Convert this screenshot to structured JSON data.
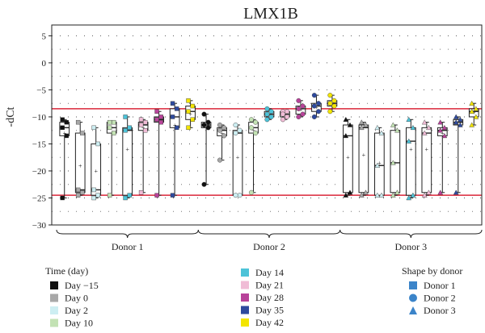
{
  "chart_data": {
    "type": "box",
    "title": "LMX1B",
    "ylabel": "-dCt",
    "xlabel": "",
    "ylim": [
      -30,
      7
    ],
    "yticks": [
      5,
      0,
      -5,
      -10,
      -15,
      -20,
      -25,
      -30
    ],
    "grid": "dotted",
    "reference_lines": [
      -8.5,
      -24.5
    ],
    "reference_line_color": "#d9263a",
    "groups": [
      {
        "label": "Donor 1",
        "days": [
          "Day −15",
          "Day 0",
          "Day 2",
          "Day 10",
          "Day 14",
          "Day 21",
          "Day 28",
          "Day 35",
          "Day 42"
        ]
      },
      {
        "label": "Donor 2",
        "days": [
          "Day −15",
          "Day 0",
          "Day 2",
          "Day 10",
          "Day 14",
          "Day 21",
          "Day 28",
          "Day 35",
          "Day 42"
        ]
      },
      {
        "label": "Donor 3",
        "days": [
          "Day −15",
          "Day 0",
          "Day 2",
          "Day 10",
          "Day 14",
          "Day 21",
          "Day 28",
          "Day 35",
          "Day 42"
        ]
      }
    ],
    "boxes": [
      {
        "group": 0,
        "day": 0,
        "q1": -13.5,
        "median": -12,
        "q3": -11,
        "min": -25,
        "max": -10.5,
        "mean": -13
      },
      {
        "group": 0,
        "day": 1,
        "q1": -24,
        "median": -23.5,
        "q3": -13,
        "min": -24.5,
        "max": -11,
        "mean": -19
      },
      {
        "group": 0,
        "day": 2,
        "q1": -24.5,
        "median": -23.5,
        "q3": -15,
        "min": -25,
        "max": -12,
        "mean": -20
      },
      {
        "group": 0,
        "day": 3,
        "q1": -13,
        "median": -12,
        "q3": -11,
        "min": -24.5,
        "max": -11,
        "mean": -13
      },
      {
        "group": 0,
        "day": 4,
        "q1": -24.5,
        "median": -12.5,
        "q3": -12,
        "min": -25,
        "max": -10,
        "mean": -16
      },
      {
        "group": 0,
        "day": 5,
        "q1": -12.5,
        "median": -11.5,
        "q3": -11,
        "min": -24,
        "max": -10.5,
        "mean": -12
      },
      {
        "group": 0,
        "day": 6,
        "q1": -11,
        "median": -10.5,
        "q3": -10,
        "min": -24.5,
        "max": -9,
        "mean": -11
      },
      {
        "group": 0,
        "day": 7,
        "q1": -12,
        "median": -10,
        "q3": -8.5,
        "min": -24.5,
        "max": -7.5,
        "mean": -11.5
      },
      {
        "group": 0,
        "day": 8,
        "q1": -10.5,
        "median": -9,
        "q3": -8,
        "min": -12,
        "max": -7,
        "mean": -9.5
      },
      {
        "group": 1,
        "day": 0,
        "q1": -12,
        "median": -11.5,
        "q3": -11,
        "min": -22.5,
        "max": -9.5,
        "mean": -12
      },
      {
        "group": 1,
        "day": 1,
        "q1": -13.5,
        "median": -12.5,
        "q3": -12,
        "min": -18,
        "max": -11.5,
        "mean": -13
      },
      {
        "group": 1,
        "day": 2,
        "q1": -24.5,
        "median": -13,
        "q3": -12.5,
        "min": -24.5,
        "max": -11.5,
        "mean": -17.5
      },
      {
        "group": 1,
        "day": 3,
        "q1": -13,
        "median": -12,
        "q3": -11,
        "min": -24,
        "max": -10.5,
        "mean": -12.5
      },
      {
        "group": 1,
        "day": 4,
        "q1": -10,
        "median": -9.5,
        "q3": -9,
        "min": -10.5,
        "max": -8.5,
        "mean": -9.7
      },
      {
        "group": 1,
        "day": 5,
        "q1": -10,
        "median": -9.5,
        "q3": -9,
        "min": -10.5,
        "max": -9,
        "mean": -9.6
      },
      {
        "group": 1,
        "day": 6,
        "q1": -9.5,
        "median": -8.5,
        "q3": -8,
        "min": -10,
        "max": -7,
        "mean": -8.7
      },
      {
        "group": 1,
        "day": 7,
        "q1": -9,
        "median": -8,
        "q3": -7.5,
        "min": -10,
        "max": -6,
        "mean": -8.2
      },
      {
        "group": 1,
        "day": 8,
        "q1": -8,
        "median": -7.5,
        "q3": -7,
        "min": -9,
        "max": -6,
        "mean": -7.6
      },
      {
        "group": 2,
        "day": 0,
        "q1": -24,
        "median": -13.5,
        "q3": -11.5,
        "min": -24.5,
        "max": -10.5,
        "mean": -17.5
      },
      {
        "group": 2,
        "day": 1,
        "q1": -24,
        "median": -12,
        "q3": -11.5,
        "min": -24.5,
        "max": -11,
        "mean": -17
      },
      {
        "group": 2,
        "day": 2,
        "q1": -24.5,
        "median": -19,
        "q3": -13,
        "min": -24.5,
        "max": -12,
        "mean": -18.5
      },
      {
        "group": 2,
        "day": 3,
        "q1": -24,
        "median": -18.5,
        "q3": -12.5,
        "min": -24.5,
        "max": -11.5,
        "mean": -18.5
      },
      {
        "group": 2,
        "day": 4,
        "q1": -24.5,
        "median": -14.5,
        "q3": -12,
        "min": -25,
        "max": -10.5,
        "mean": -16
      },
      {
        "group": 2,
        "day": 5,
        "q1": -24,
        "median": -13,
        "q3": -12,
        "min": -24.5,
        "max": -11,
        "mean": -16
      },
      {
        "group": 2,
        "day": 6,
        "q1": -13.5,
        "median": -12.5,
        "q3": -12,
        "min": -24,
        "max": -11,
        "mean": -13
      },
      {
        "group": 2,
        "day": 7,
        "q1": -11.5,
        "median": -11,
        "q3": -10.5,
        "min": -24,
        "max": -10,
        "mean": -11.5
      },
      {
        "group": 2,
        "day": 8,
        "q1": -10,
        "median": -9,
        "q3": -8.5,
        "min": -11.5,
        "max": -7.5,
        "mean": -9.2
      }
    ],
    "legend_title": "Time (day)",
    "legend": [
      {
        "name": "Day −15",
        "color": "#111111"
      },
      {
        "name": "Day 0",
        "color": "#a8a8a8"
      },
      {
        "name": "Day 2",
        "color": "#cdeef2"
      },
      {
        "name": "Day 10",
        "color": "#c3e2b4"
      },
      {
        "name": "Day 14",
        "color": "#4dc3d8"
      },
      {
        "name": "Day 21",
        "color": "#f0bcd6"
      },
      {
        "name": "Day 28",
        "color": "#b8439a"
      },
      {
        "name": "Day 35",
        "color": "#2e4a9e"
      },
      {
        "name": "Day 42",
        "color": "#f3e500"
      }
    ],
    "shape_legend_title": "Shape by donor",
    "shape_legend": [
      {
        "name": "Donor 1",
        "shape": "square",
        "color": "#3b84c9"
      },
      {
        "name": "Donor 2",
        "shape": "circle",
        "color": "#3b84c9"
      },
      {
        "name": "Donor 3",
        "shape": "triangle",
        "color": "#3b84c9"
      }
    ]
  }
}
